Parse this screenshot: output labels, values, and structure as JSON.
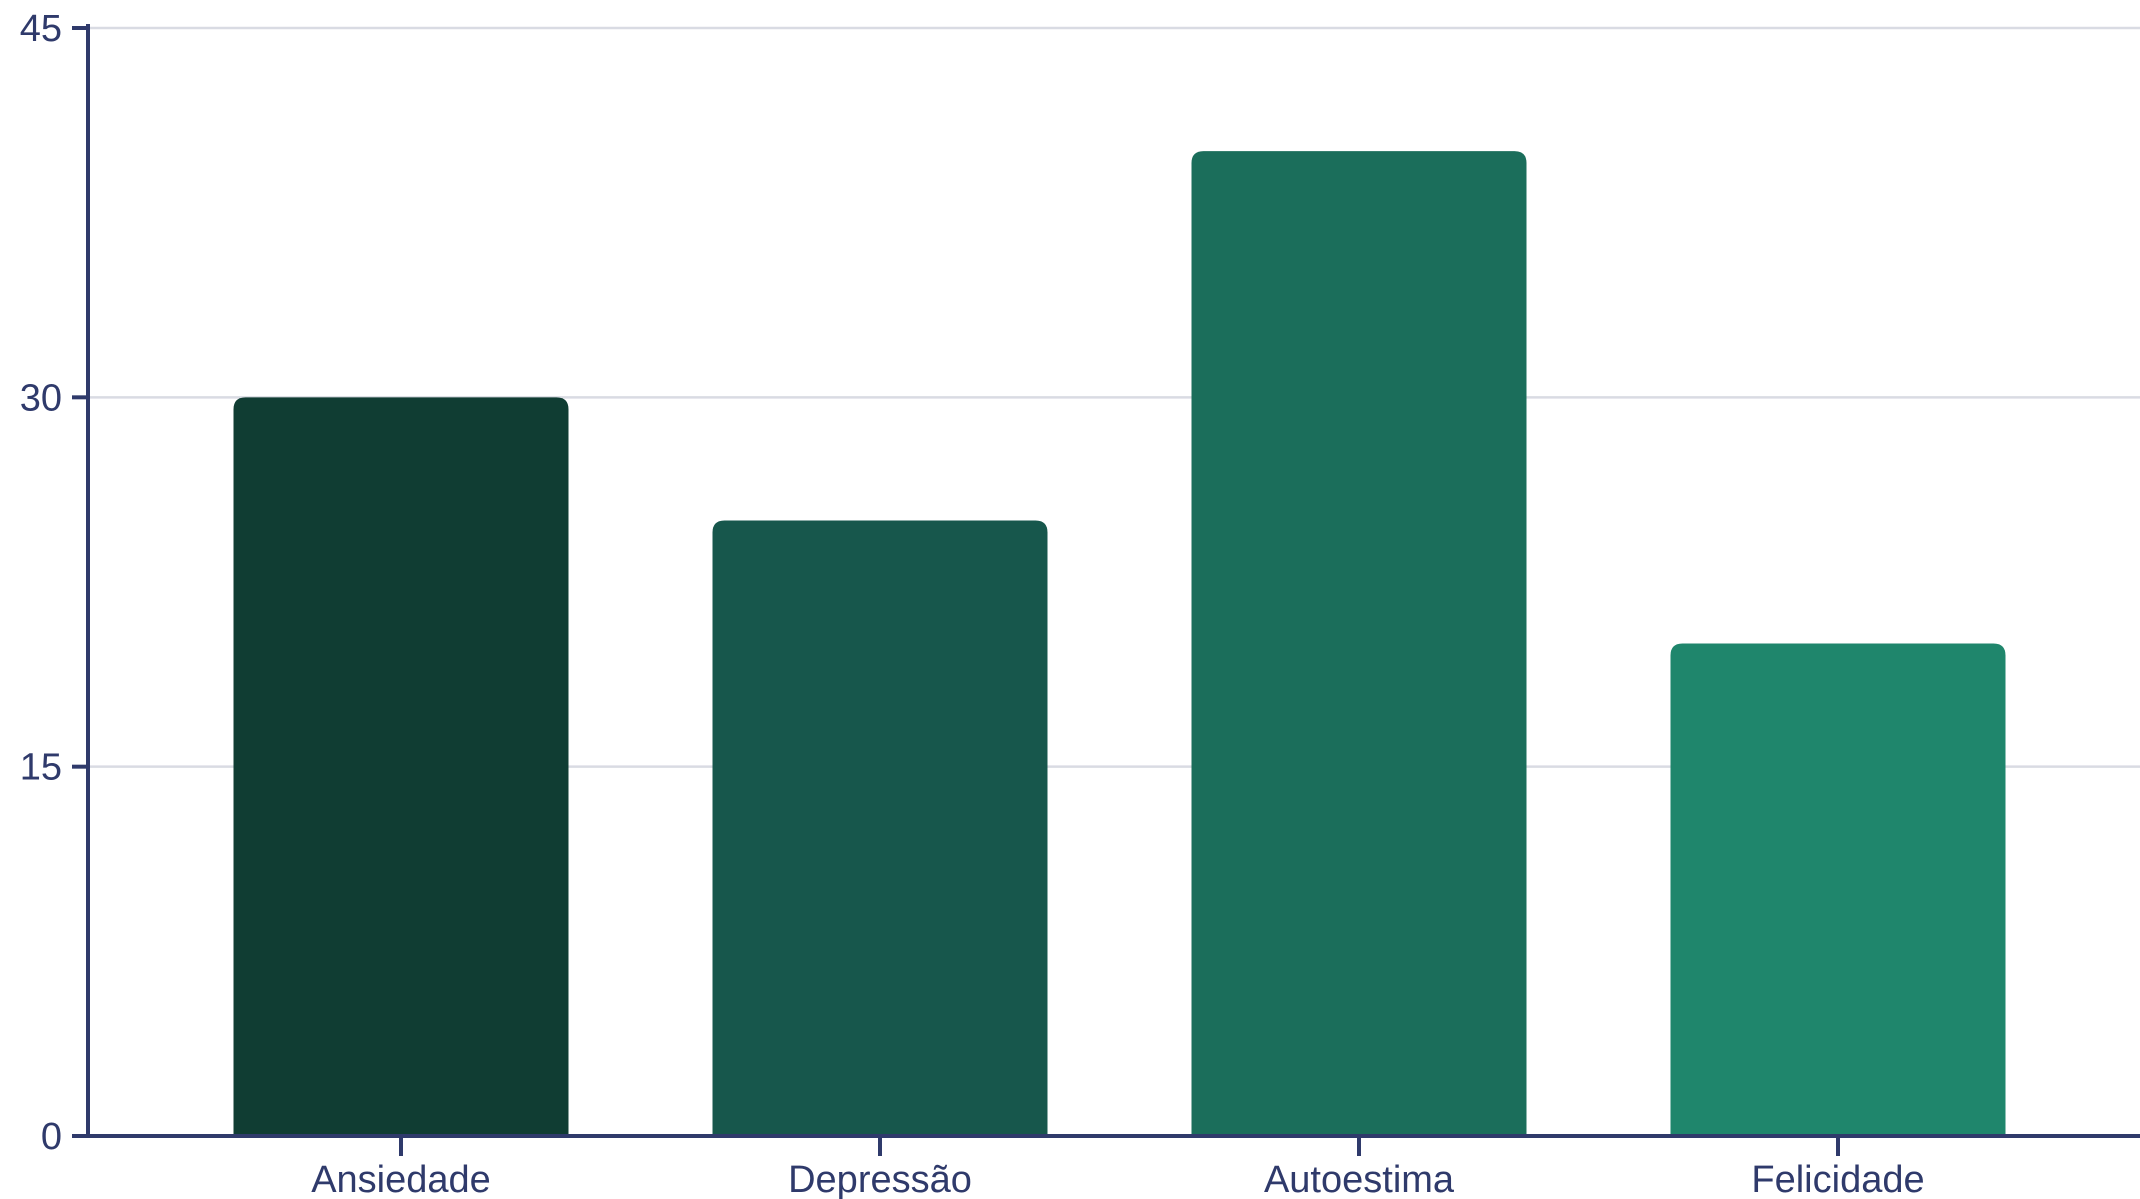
{
  "chart_data": {
    "type": "bar",
    "categories": [
      "Ansiedade",
      "Depressão",
      "Autoestima",
      "Felicidade"
    ],
    "values": [
      30,
      25,
      40,
      20
    ],
    "bar_colors": [
      "#103d33",
      "#17574c",
      "#1b6e5b",
      "#1f866c"
    ],
    "ylim": [
      0,
      45
    ],
    "yticks": [
      0,
      15,
      30,
      45
    ],
    "ytick_labels": [
      "0",
      "15",
      "30",
      "45"
    ],
    "grid": true,
    "title": "",
    "xlabel": "",
    "ylabel": "",
    "colors": {
      "axis": "#2f3a6b",
      "grid": "#d9dbe3",
      "text": "#2f3a6b"
    }
  }
}
